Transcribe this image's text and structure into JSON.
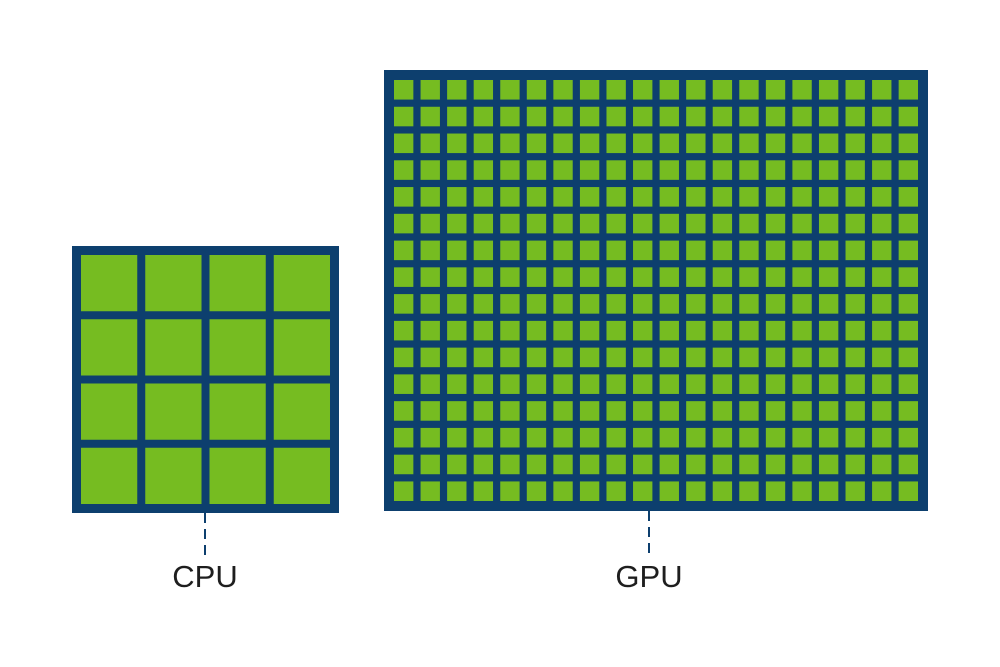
{
  "labels": {
    "cpu": "CPU",
    "gpu": "GPU"
  }
}
